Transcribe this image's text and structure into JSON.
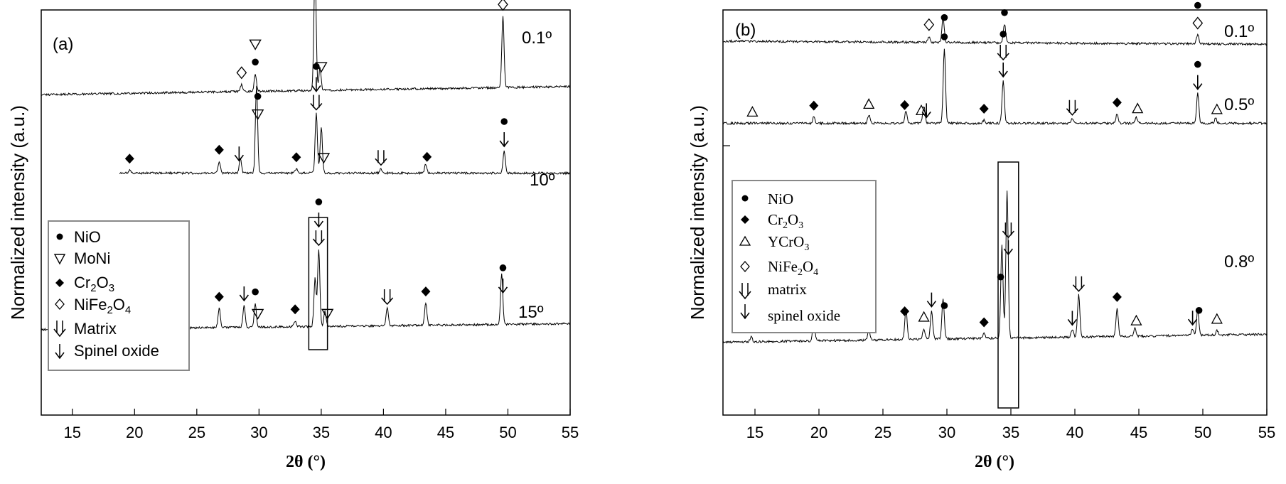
{
  "chart_data": [
    {
      "type": "line",
      "panel_label": "(a)",
      "xlabel": "2θ (°)",
      "ylabel": "Normalized intensity (a.u.)",
      "xlim": [
        12.5,
        55
      ],
      "xticks": [
        15,
        20,
        25,
        30,
        35,
        40,
        45,
        50,
        55
      ],
      "series": [
        {
          "name": "0.1º",
          "baseline": [
            [
              12.5,
              0.23
            ],
            [
              55,
              0.78
            ]
          ],
          "peaks": [
            [
              28.6,
              0.5
            ],
            [
              29.7,
              1.2
            ],
            [
              34.5,
              8.4
            ],
            [
              34.9,
              1.5
            ],
            [
              49.6,
              4.8
            ]
          ],
          "markers": [
            {
              "x": 28.6,
              "symbol": "diamond-open"
            },
            {
              "x": 29.7,
              "symbol": "triangle-down-open"
            },
            {
              "x": 29.7,
              "symbol": "circle"
            },
            {
              "x": 34.5,
              "symbol": "circle"
            },
            {
              "x": 35.0,
              "symbol": "triangle-down-open"
            },
            {
              "x": 49.6,
              "symbol": "circle"
            },
            {
              "x": 49.6,
              "symbol": "diamond-open"
            }
          ]
        },
        {
          "name": "10º",
          "baseline": [
            [
              18.8,
              0.5
            ],
            [
              55,
              0.5
            ]
          ],
          "peaks": [
            [
              19.6,
              0.2
            ],
            [
              26.8,
              0.8
            ],
            [
              28.5,
              1.0
            ],
            [
              29.8,
              5.9
            ],
            [
              33.0,
              0.3
            ],
            [
              34.6,
              4.0
            ],
            [
              35.0,
              3.1
            ],
            [
              39.8,
              0.3
            ],
            [
              43.4,
              0.6
            ],
            [
              49.7,
              1.5
            ]
          ],
          "markers": [
            {
              "x": 19.6,
              "symbol": "diamond"
            },
            {
              "x": 26.8,
              "symbol": "diamond"
            },
            {
              "x": 28.4,
              "symbol": "arrow"
            },
            {
              "x": 29.9,
              "symbol": "circle"
            },
            {
              "x": 29.9,
              "symbol": "triangle-down-open"
            },
            {
              "x": 33.0,
              "symbol": "diamond"
            },
            {
              "x": 34.6,
              "symbol": "circle"
            },
            {
              "x": 34.6,
              "symbol": "arrow"
            },
            {
              "x": 34.6,
              "symbol": "double-arrow"
            },
            {
              "x": 35.2,
              "symbol": "triangle-down-open"
            },
            {
              "x": 39.8,
              "symbol": "double-arrow"
            },
            {
              "x": 43.5,
              "symbol": "diamond"
            },
            {
              "x": 49.7,
              "symbol": "circle"
            },
            {
              "x": 49.7,
              "symbol": "arrow"
            }
          ]
        },
        {
          "name": "15º",
          "baseline": [
            [
              12.5,
              0.3
            ],
            [
              55,
              0.7
            ]
          ],
          "peaks": [
            [
              19.6,
              0.8
            ],
            [
              26.8,
              1.3
            ],
            [
              28.8,
              1.5
            ],
            [
              29.7,
              1.6
            ],
            [
              32.9,
              0.4
            ],
            [
              34.5,
              3.2
            ],
            [
              34.8,
              5.2
            ],
            [
              35.3,
              1.0
            ],
            [
              40.3,
              1.2
            ],
            [
              43.4,
              1.5
            ],
            [
              49.5,
              3.4
            ]
          ],
          "markers": [
            {
              "x": 19.6,
              "symbol": "diamond"
            },
            {
              "x": 26.8,
              "symbol": "diamond"
            },
            {
              "x": 28.8,
              "symbol": "arrow"
            },
            {
              "x": 29.7,
              "symbol": "circle"
            },
            {
              "x": 29.9,
              "symbol": "triangle-down-open"
            },
            {
              "x": 32.9,
              "symbol": "diamond"
            },
            {
              "x": 34.8,
              "symbol": "circle"
            },
            {
              "x": 34.8,
              "symbol": "arrow"
            },
            {
              "x": 34.8,
              "symbol": "double-arrow"
            },
            {
              "x": 35.5,
              "symbol": "triangle-down-open"
            },
            {
              "x": 40.3,
              "symbol": "double-arrow"
            },
            {
              "x": 43.4,
              "symbol": "diamond"
            },
            {
              "x": 49.6,
              "symbol": "circle"
            },
            {
              "x": 49.6,
              "symbol": "arrow"
            }
          ]
        }
      ],
      "legend": [
        {
          "symbol": "circle",
          "label": "NiO"
        },
        {
          "symbol": "triangle-down-open",
          "label": "MoNi"
        },
        {
          "symbol": "diamond",
          "label": "Cr2O3"
        },
        {
          "symbol": "diamond-open",
          "label": "NiFe2O4"
        },
        {
          "symbol": "double-arrow",
          "label": "Matrix"
        },
        {
          "symbol": "arrow",
          "label": "Spinel oxide"
        }
      ],
      "legend_position": "lower-left",
      "highlight_range": [
        34.0,
        35.5
      ]
    },
    {
      "type": "line",
      "panel_label": "(b)",
      "xlabel": "2θ (°)",
      "ylabel": "Normalized intensity (a.u.)",
      "xlim": [
        12.5,
        55
      ],
      "xticks": [
        15,
        20,
        25,
        30,
        35,
        40,
        45,
        50,
        55
      ],
      "series": [
        {
          "name": "0.1º",
          "baseline": [
            [
              12.5,
              0.55
            ],
            [
              55,
              0.35
            ]
          ],
          "peaks": [
            [
              28.6,
              0.4
            ],
            [
              29.7,
              1.6
            ],
            [
              34.5,
              1.2
            ],
            [
              49.6,
              0.6
            ]
          ],
          "markers": [
            {
              "x": 28.6,
              "symbol": "diamond-open"
            },
            {
              "x": 29.8,
              "symbol": "circle"
            },
            {
              "x": 34.5,
              "symbol": "circle"
            },
            {
              "x": 49.6,
              "symbol": "circle"
            },
            {
              "x": 49.6,
              "symbol": "diamond-open"
            }
          ]
        },
        {
          "name": "0.5º",
          "baseline": [
            [
              12.5,
              0.3
            ],
            [
              55,
              0.3
            ]
          ],
          "peaks": [
            [
              19.6,
              0.4
            ],
            [
              23.9,
              0.5
            ],
            [
              26.8,
              0.8
            ],
            [
              28.2,
              1.1
            ],
            [
              29.8,
              4.8
            ],
            [
              32.9,
              0.2
            ],
            [
              34.4,
              2.7
            ],
            [
              39.8,
              0.3
            ],
            [
              43.3,
              0.6
            ],
            [
              44.8,
              0.4
            ],
            [
              49.6,
              1.9
            ],
            [
              51.0,
              0.3
            ]
          ],
          "markers": [
            {
              "x": 14.8,
              "symbol": "triangle-open"
            },
            {
              "x": 19.6,
              "symbol": "diamond"
            },
            {
              "x": 23.9,
              "symbol": "triangle-open"
            },
            {
              "x": 26.7,
              "symbol": "diamond"
            },
            {
              "x": 28.0,
              "symbol": "triangle-open"
            },
            {
              "x": 28.4,
              "symbol": "arrow"
            },
            {
              "x": 29.8,
              "symbol": "circle"
            },
            {
              "x": 32.9,
              "symbol": "diamond"
            },
            {
              "x": 34.4,
              "symbol": "circle"
            },
            {
              "x": 34.4,
              "symbol": "double-arrow"
            },
            {
              "x": 34.4,
              "symbol": "arrow"
            },
            {
              "x": 39.8,
              "symbol": "double-arrow"
            },
            {
              "x": 43.3,
              "symbol": "diamond"
            },
            {
              "x": 44.9,
              "symbol": "triangle-open"
            },
            {
              "x": 49.6,
              "symbol": "circle"
            },
            {
              "x": 49.6,
              "symbol": "arrow"
            },
            {
              "x": 51.1,
              "symbol": "triangle-open"
            }
          ]
        },
        {
          "name": "0.8º",
          "baseline": [
            [
              12.5,
              0.3
            ],
            [
              55,
              0.8
            ]
          ],
          "peaks": [
            [
              14.7,
              0.3
            ],
            [
              19.6,
              1.3
            ],
            [
              23.9,
              0.7
            ],
            [
              26.8,
              2.0
            ],
            [
              28.2,
              0.7
            ],
            [
              28.8,
              1.8
            ],
            [
              29.7,
              2.6
            ],
            [
              32.9,
              0.3
            ],
            [
              34.3,
              5.9
            ],
            [
              34.7,
              9.4
            ],
            [
              39.8,
              0.5
            ],
            [
              40.3,
              2.7
            ],
            [
              43.3,
              1.8
            ],
            [
              44.7,
              0.5
            ],
            [
              49.2,
              0.4
            ],
            [
              49.6,
              1.6
            ],
            [
              51.1,
              0.3
            ]
          ],
          "markers": [
            {
              "x": 14.8,
              "symbol": "triangle-open"
            },
            {
              "x": 19.6,
              "symbol": "diamond"
            },
            {
              "x": 23.9,
              "symbol": "triangle-open"
            },
            {
              "x": 26.7,
              "symbol": "diamond"
            },
            {
              "x": 28.2,
              "symbol": "triangle-open"
            },
            {
              "x": 28.8,
              "symbol": "arrow"
            },
            {
              "x": 29.8,
              "symbol": "circle"
            },
            {
              "x": 32.9,
              "symbol": "diamond"
            },
            {
              "x": 34.2,
              "symbol": "circle"
            },
            {
              "x": 34.8,
              "symbol": "double-arrow"
            },
            {
              "x": 34.8,
              "symbol": "arrow"
            },
            {
              "x": 39.8,
              "symbol": "arrow"
            },
            {
              "x": 40.3,
              "symbol": "double-arrow"
            },
            {
              "x": 43.3,
              "symbol": "diamond"
            },
            {
              "x": 44.8,
              "symbol": "triangle-open"
            },
            {
              "x": 49.2,
              "symbol": "arrow"
            },
            {
              "x": 49.7,
              "symbol": "circle"
            },
            {
              "x": 51.1,
              "symbol": "triangle-open"
            }
          ]
        }
      ],
      "legend": [
        {
          "symbol": "circle",
          "label": "NiO"
        },
        {
          "symbol": "diamond",
          "label": "Cr2O3"
        },
        {
          "symbol": "triangle-open",
          "label": "YCrO3"
        },
        {
          "symbol": "diamond-open",
          "label": "NiFe2O4"
        },
        {
          "symbol": "double-arrow",
          "label": "matrix"
        },
        {
          "symbol": "arrow",
          "label": "spinel oxide"
        }
      ],
      "legend_position": "upper-left",
      "highlight_range": [
        34.0,
        35.6
      ]
    }
  ]
}
